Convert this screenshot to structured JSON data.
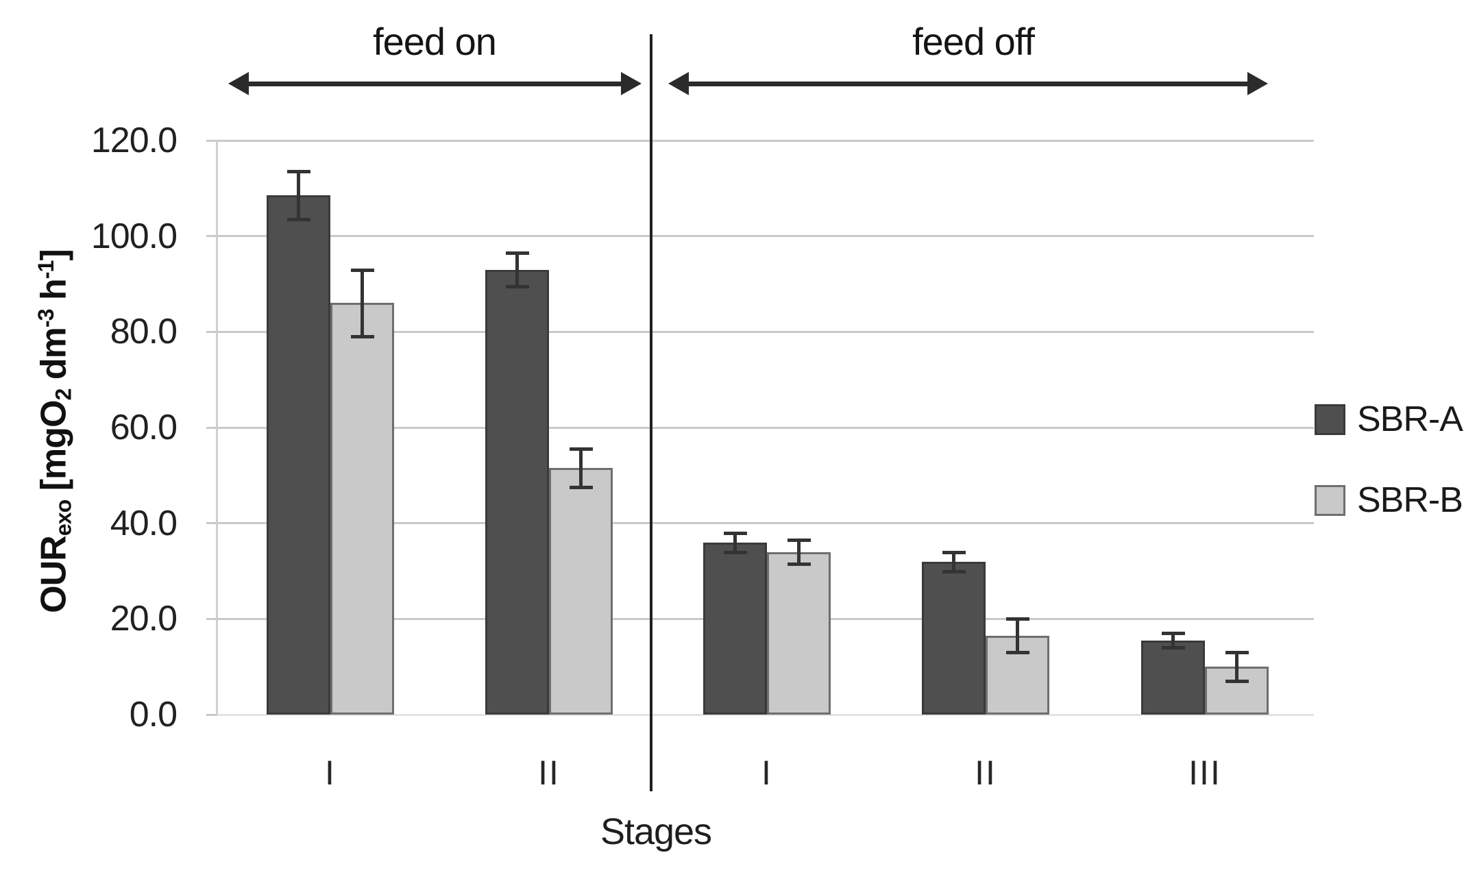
{
  "figure": {
    "background": "#ffffff"
  },
  "chart_data": {
    "type": "bar",
    "title": "",
    "xlabel": "Stages",
    "ylabel": "OURexo [mgO2 dm-3 h-1]",
    "ylabel_segments": [
      {
        "text": "OUR",
        "style": "normal"
      },
      {
        "text": "exo",
        "style": "sub"
      },
      {
        "text": " [mgO",
        "style": "normal"
      },
      {
        "text": "2",
        "style": "sub"
      },
      {
        "text": " dm",
        "style": "normal"
      },
      {
        "text": "-3",
        "style": "sup"
      },
      {
        "text": "  h",
        "style": "normal"
      },
      {
        "text": "-1",
        "style": "sup"
      },
      {
        "text": "]",
        "style": "normal"
      }
    ],
    "ylim": [
      0,
      120
    ],
    "ytick_step": 20,
    "ytick_labels": [
      "0.0",
      "20.0",
      "40.0",
      "60.0",
      "80.0",
      "100.0",
      "120.0"
    ],
    "grid": true,
    "legend_position": "right",
    "categories": [
      "I",
      "II",
      "I",
      "II",
      "III"
    ],
    "category_sections": [
      "feed on",
      "feed on",
      "feed off",
      "feed off",
      "feed off"
    ],
    "sections": [
      {
        "label": "feed on"
      },
      {
        "label": "feed off"
      }
    ],
    "series": [
      {
        "name": "SBR-A",
        "color": "#4f4f4f",
        "border_color": "#3a3a3a",
        "values": [
          108.5,
          93.0,
          36.0,
          32.0,
          15.5
        ],
        "errors": [
          5.0,
          3.5,
          2.0,
          2.0,
          1.5
        ]
      },
      {
        "name": "SBR-B",
        "color": "#c9c9c9",
        "border_color": "#6e6e6e",
        "values": [
          86.0,
          51.5,
          34.0,
          16.5,
          10.0
        ],
        "errors": [
          7.0,
          4.0,
          2.5,
          3.5,
          3.0
        ]
      }
    ],
    "colors": {
      "grid": "#c9c9c9",
      "baseline": "#e3e3e3",
      "axis": "#cfcfcf",
      "error_bar": "#333333",
      "divider": "#1f1f1f",
      "arrow": "#2b2b2b",
      "text": "#1f1f1f"
    }
  }
}
